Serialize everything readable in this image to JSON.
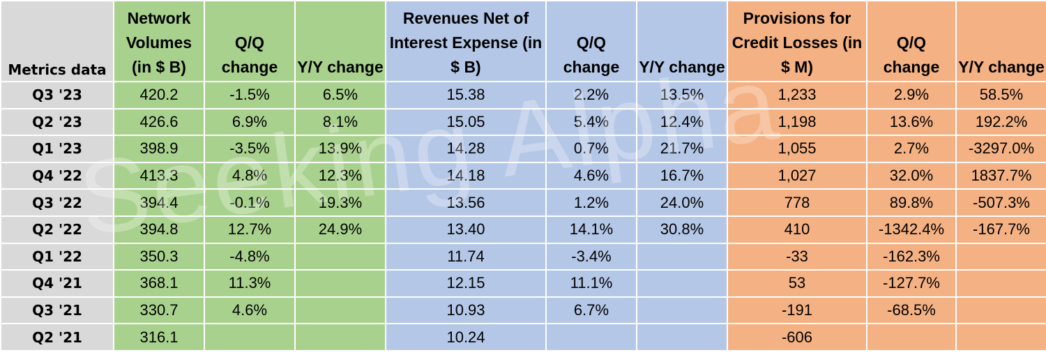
{
  "headers": {
    "metrics": "Metrics data",
    "network_volumes": "Network Volumes (in $ B)",
    "nv_qq": "Q/Q change",
    "nv_yy": "Y/Y change",
    "revenues": "Revenues Net of Interest Expense (in $ B)",
    "rev_qq": "Q/Q change",
    "rev_yy": "Y/Y change",
    "provisions": "Provisions for Credit Losses (in $ M)",
    "prov_qq": "Q/Q change",
    "prov_yy": "Y/Y change"
  },
  "rows": [
    {
      "q": "Q3 '23",
      "nv": "420.2",
      "nv_qq": "-1.5%",
      "nv_yy": "6.5%",
      "rev": "15.38",
      "rev_qq": "2.2%",
      "rev_yy": "13.5%",
      "prov": "1,233",
      "prov_qq": "2.9%",
      "prov_yy": "58.5%"
    },
    {
      "q": "Q2 '23",
      "nv": "426.6",
      "nv_qq": "6.9%",
      "nv_yy": "8.1%",
      "rev": "15.05",
      "rev_qq": "5.4%",
      "rev_yy": "12.4%",
      "prov": "1,198",
      "prov_qq": "13.6%",
      "prov_yy": "192.2%"
    },
    {
      "q": "Q1 '23",
      "nv": "398.9",
      "nv_qq": "-3.5%",
      "nv_yy": "13.9%",
      "rev": "14.28",
      "rev_qq": "0.7%",
      "rev_yy": "21.7%",
      "prov": "1,055",
      "prov_qq": "2.7%",
      "prov_yy": "-3297.0%"
    },
    {
      "q": "Q4 '22",
      "nv": "413.3",
      "nv_qq": "4.8%",
      "nv_yy": "12.3%",
      "rev": "14.18",
      "rev_qq": "4.6%",
      "rev_yy": "16.7%",
      "prov": "1,027",
      "prov_qq": "32.0%",
      "prov_yy": "1837.7%"
    },
    {
      "q": "Q3 '22",
      "nv": "394.4",
      "nv_qq": "-0.1%",
      "nv_yy": "19.3%",
      "rev": "13.56",
      "rev_qq": "1.2%",
      "rev_yy": "24.0%",
      "prov": "778",
      "prov_qq": "89.8%",
      "prov_yy": "-507.3%"
    },
    {
      "q": "Q2 '22",
      "nv": "394.8",
      "nv_qq": "12.7%",
      "nv_yy": "24.9%",
      "rev": "13.40",
      "rev_qq": "14.1%",
      "rev_yy": "30.8%",
      "prov": "410",
      "prov_qq": "-1342.4%",
      "prov_yy": "-167.7%"
    },
    {
      "q": "Q1 '22",
      "nv": "350.3",
      "nv_qq": "-4.8%",
      "nv_yy": "",
      "rev": "11.74",
      "rev_qq": "-3.4%",
      "rev_yy": "",
      "prov": "-33",
      "prov_qq": "-162.3%",
      "prov_yy": ""
    },
    {
      "q": "Q4 '21",
      "nv": "368.1",
      "nv_qq": "11.3%",
      "nv_yy": "",
      "rev": "12.15",
      "rev_qq": "11.1%",
      "rev_yy": "",
      "prov": "53",
      "prov_qq": "-127.7%",
      "prov_yy": ""
    },
    {
      "q": "Q3 '21",
      "nv": "330.7",
      "nv_qq": "4.6%",
      "nv_yy": "",
      "rev": "10.93",
      "rev_qq": "6.7%",
      "rev_yy": "",
      "prov": "-191",
      "prov_qq": "-68.5%",
      "prov_yy": ""
    },
    {
      "q": "Q2 '21",
      "nv": "316.1",
      "nv_qq": "",
      "nv_yy": "",
      "rev": "10.24",
      "rev_qq": "",
      "rev_yy": "",
      "prov": "-606",
      "prov_qq": "",
      "prov_yy": ""
    }
  ],
  "watermark": "Seeking Alpha",
  "colors": {
    "row_header": "#d9d9d9",
    "network_group": "#a9d18e",
    "revenue_group": "#b4c7e7",
    "provision_group": "#f4b183"
  }
}
